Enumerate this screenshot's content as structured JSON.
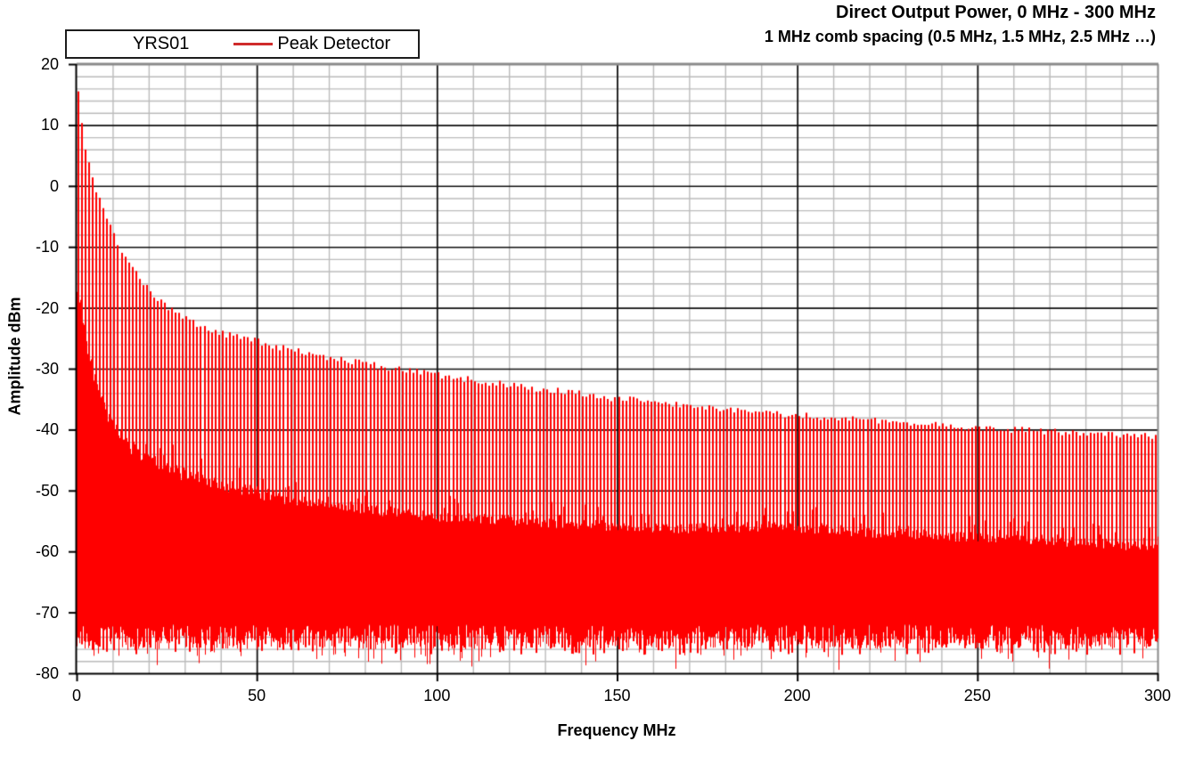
{
  "header": {
    "title": "Direct Output Power, 0 MHz - 300 MHz",
    "subtitle": "1 MHz comb spacing (0.5 MHz, 1.5 MHz, 2.5 MHz …)"
  },
  "legend": {
    "device": "YRS01",
    "series": "Peak Detector",
    "series_color": "#cf2b2b"
  },
  "axes": {
    "x": {
      "label": "Frequency MHz",
      "min": 0,
      "max": 300,
      "ticks": [
        0,
        50,
        100,
        150,
        200,
        250,
        300
      ],
      "minor_grid_mhz": 10,
      "major_grid_mhz": 50
    },
    "y": {
      "label": "Amplitude dBm",
      "min": -80,
      "max": 20,
      "ticks": [
        20,
        10,
        0,
        -10,
        -20,
        -30,
        -40,
        -50,
        -60,
        -70,
        -80
      ],
      "minor_grid_db": 2,
      "major_grid_db": 10
    }
  },
  "colors": {
    "trace": "#ff0000",
    "grid_minor": "#bcbcbc",
    "grid_major": "#111111",
    "border_gray": "#8a8a8a",
    "axis": "#000000",
    "background": "#ffffff"
  },
  "chart_data": {
    "type": "line",
    "title": "Direct Output Power, 0 MHz - 300 MHz",
    "subtitle": "1 MHz comb spacing (0.5 MHz, 1.5 MHz, 2.5 MHz …)",
    "xlabel": "Frequency MHz",
    "ylabel": "Amplitude dBm",
    "xlim": [
      0,
      300
    ],
    "ylim": [
      -80,
      20
    ],
    "grid": true,
    "legend_position": "top-left",
    "series": [
      {
        "name": "Peak Detector",
        "detector": "peak",
        "color": "#ff0000"
      }
    ],
    "comb": {
      "spacing_mhz": 1.0,
      "first_tooth_mhz": 0.5,
      "teeth_count": 300
    },
    "peak_envelope_dbm": [
      [
        0.5,
        15.5
      ],
      [
        1.5,
        9.8
      ],
      [
        2.5,
        6.2
      ],
      [
        3.5,
        3.6
      ],
      [
        4.5,
        1.4
      ],
      [
        5.5,
        -0.5
      ],
      [
        6.5,
        -2.2
      ],
      [
        8,
        -4.8
      ],
      [
        10,
        -7.5
      ],
      [
        12,
        -10.0
      ],
      [
        15,
        -13.2
      ],
      [
        18,
        -15.6
      ],
      [
        22,
        -18.2
      ],
      [
        26,
        -20.2
      ],
      [
        30,
        -21.7
      ],
      [
        35,
        -23.2
      ],
      [
        40,
        -24.2
      ],
      [
        45,
        -24.9
      ],
      [
        50,
        -25.5
      ],
      [
        60,
        -27.0
      ],
      [
        70,
        -28.2
      ],
      [
        80,
        -29.2
      ],
      [
        90,
        -30.1
      ],
      [
        100,
        -31.0
      ],
      [
        115,
        -32.3
      ],
      [
        130,
        -33.4
      ],
      [
        150,
        -34.9
      ],
      [
        170,
        -36.1
      ],
      [
        190,
        -37.2
      ],
      [
        200,
        -37.6
      ],
      [
        220,
        -38.5
      ],
      [
        240,
        -39.3
      ],
      [
        260,
        -40.0
      ],
      [
        280,
        -40.6
      ],
      [
        300,
        -41.2
      ]
    ],
    "valley_floor_dbm": [
      [
        0.5,
        -19
      ],
      [
        1.5,
        -23
      ],
      [
        2.5,
        -27
      ],
      [
        4,
        -31.5
      ],
      [
        6,
        -35
      ],
      [
        8,
        -38
      ],
      [
        10,
        -40.5
      ],
      [
        13,
        -43
      ],
      [
        16,
        -44.5
      ],
      [
        20,
        -46
      ],
      [
        25,
        -47.5
      ],
      [
        30,
        -48.5
      ],
      [
        35,
        -49.3
      ],
      [
        40,
        -50.0
      ],
      [
        45,
        -50.8
      ],
      [
        50,
        -51.5
      ],
      [
        60,
        -52.6
      ],
      [
        70,
        -53.3
      ],
      [
        80,
        -54.0
      ],
      [
        90,
        -54.6
      ],
      [
        100,
        -55.1
      ],
      [
        115,
        -55.7
      ],
      [
        130,
        -56.1
      ],
      [
        150,
        -56.7
      ],
      [
        165,
        -57.1
      ],
      [
        180,
        -56.9
      ],
      [
        195,
        -56.7
      ],
      [
        210,
        -57.3
      ],
      [
        225,
        -57.9
      ],
      [
        240,
        -58.3
      ],
      [
        255,
        -58.7
      ],
      [
        270,
        -59.1
      ],
      [
        285,
        -59.6
      ],
      [
        300,
        -60.2
      ]
    ],
    "noise_floor_dbm": {
      "typical": -76,
      "min": -79.7,
      "max": -72
    }
  }
}
